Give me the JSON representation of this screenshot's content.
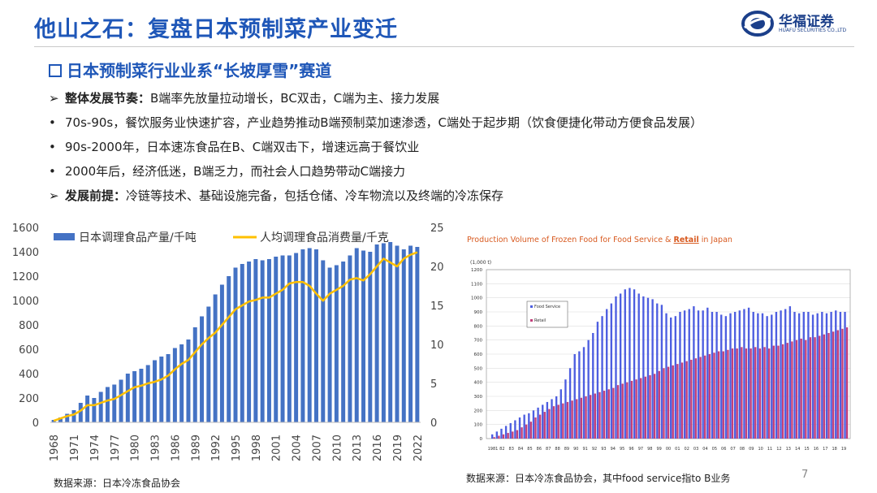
{
  "header": {
    "title": "他山之石：复盘日本预制菜产业变迁",
    "logo_text": "华福证券",
    "logo_sub": "HUAFU SECURITIES CO.,LTD"
  },
  "section": {
    "subtitle": "日本预制菜行业业系“长坡厚雪”赛道",
    "bullets": [
      {
        "marker": "➢",
        "bold": "整体发展节奏：",
        "text": "B端率先放量拉动增长，BC双击，C端为主、接力发展"
      },
      {
        "marker": "•",
        "bold": "",
        "text": "70s-90s，餐饮服务业快速扩容，产业趋势推动B端预制菜加速渗透，C端处于起步期（饮食便捷化带动方便食品发展）"
      },
      {
        "marker": "•",
        "bold": "",
        "text": "90s-2000年，日本速冻食品在B、C端双击下，增速远高于餐饮业"
      },
      {
        "marker": "•",
        "bold": "",
        "text": "2000年后，经济低迷，B端乏力，而社会人口趋势带动C端接力"
      },
      {
        "marker": "➢",
        "bold": "发展前提：",
        "text": "冷链等技术、基础设施完备，包括仓储、冷车物流以及终端的冷冻保存"
      }
    ]
  },
  "chart_data": [
    {
      "type": "bar+line",
      "categories": [
        "1968",
        "1969",
        "1970",
        "1971",
        "1972",
        "1973",
        "1974",
        "1975",
        "1976",
        "1977",
        "1978",
        "1979",
        "1980",
        "1981",
        "1982",
        "1983",
        "1984",
        "1985",
        "1986",
        "1987",
        "1988",
        "1989",
        "1990",
        "1991",
        "1992",
        "1993",
        "1994",
        "1995",
        "1996",
        "1997",
        "1998",
        "1999",
        "2000",
        "2001",
        "2002",
        "2003",
        "2004",
        "2005",
        "2006",
        "2007",
        "2008",
        "2009",
        "2010",
        "2011",
        "2012",
        "2013",
        "2014",
        "2015",
        "2016",
        "2017",
        "2018",
        "2019",
        "2020",
        "2021",
        "2022"
      ],
      "tick_labels": [
        "1968",
        "1971",
        "1974",
        "1977",
        "1980",
        "1983",
        "1986",
        "1989",
        "1992",
        "1995",
        "1998",
        "2001",
        "2004",
        "2007",
        "2010",
        "2013",
        "2016",
        "2019",
        "2022"
      ],
      "series": [
        {
          "name": "日本调理食品产量/千吨",
          "type": "bar",
          "axis": "left",
          "color": "#4472c4",
          "values": [
            20,
            40,
            70,
            100,
            160,
            220,
            200,
            250,
            290,
            310,
            350,
            400,
            420,
            440,
            470,
            510,
            540,
            560,
            610,
            640,
            680,
            780,
            870,
            950,
            1050,
            1130,
            1200,
            1270,
            1300,
            1320,
            1340,
            1330,
            1340,
            1360,
            1370,
            1370,
            1390,
            1420,
            1430,
            1420,
            1330,
            1270,
            1290,
            1320,
            1370,
            1430,
            1410,
            1400,
            1460,
            1470,
            1480,
            1450,
            1420,
            1450,
            1440
          ]
        },
        {
          "name": "人均调理食品消费量/千克",
          "type": "line",
          "axis": "right",
          "color": "#ffc000",
          "values": [
            0.2,
            0.5,
            0.8,
            1.0,
            1.5,
            2.2,
            2.2,
            2.5,
            2.8,
            3.0,
            3.5,
            4.0,
            4.5,
            4.7,
            5.0,
            5.2,
            5.5,
            6.0,
            6.8,
            7.5,
            8.0,
            9.0,
            10.0,
            10.8,
            11.5,
            12.5,
            13.5,
            14.5,
            15.0,
            15.5,
            15.7,
            16.0,
            16.0,
            16.5,
            17.0,
            17.8,
            18.0,
            18.0,
            17.5,
            16.5,
            15.6,
            16.5,
            17.0,
            17.5,
            18.3,
            18.5,
            18.2,
            19.0,
            20.0,
            21.0,
            20.5,
            20.0,
            21.0,
            21.5,
            21.8
          ]
        }
      ],
      "ylim_left": [
        0,
        1600
      ],
      "yticks_left": [
        0,
        200,
        400,
        600,
        800,
        1000,
        1200,
        1400,
        1600
      ],
      "ylim_right": [
        0,
        25
      ],
      "yticks_right": [
        0,
        5,
        10,
        15,
        20,
        25
      ]
    },
    {
      "type": "bar",
      "title_part1": "Production Volume of Frozen Food for Food Service & ",
      "title_highlight": "Retail",
      "title_part2": " in Japan",
      "unit_label": "(1,000 t)",
      "tick_labels": [
        "1981",
        "82",
        "83",
        "84",
        "85",
        "86",
        "87",
        "88",
        "89",
        "90",
        "91",
        "92",
        "93",
        "94",
        "95",
        "96",
        "97",
        "98",
        "99",
        "00",
        "01",
        "02",
        "03",
        "04",
        "05",
        "06",
        "07",
        "08",
        "09",
        "10",
        "11",
        "12",
        "13",
        "14",
        "15",
        "16",
        "17",
        "18",
        "19"
      ],
      "series": [
        {
          "name": "Food Service",
          "color": "#4d5ee0",
          "values": [
            30,
            50,
            70,
            90,
            110,
            130,
            150,
            170,
            180,
            200,
            220,
            240,
            260,
            280,
            300,
            350,
            420,
            500,
            600,
            620,
            650,
            700,
            750,
            830,
            870,
            920,
            960,
            1010,
            1030,
            1060,
            1070,
            1060,
            1030,
            1010,
            1000,
            990,
            960,
            950,
            890,
            860,
            870,
            900,
            910,
            920,
            940,
            910,
            910,
            930,
            900,
            900,
            880,
            870,
            890,
            900,
            910,
            920,
            930,
            900,
            890,
            890,
            870,
            880,
            900,
            910,
            920,
            940,
            900,
            890,
            900,
            900,
            880,
            890,
            900,
            890,
            900,
            910,
            900,
            900
          ]
        },
        {
          "name": "Retail",
          "color": "#c2407a",
          "values": [
            10,
            20,
            30,
            40,
            50,
            60,
            80,
            100,
            120,
            150,
            170,
            190,
            210,
            230,
            240,
            250,
            260,
            270,
            280,
            290,
            300,
            310,
            320,
            330,
            340,
            350,
            360,
            380,
            390,
            400,
            410,
            420,
            430,
            440,
            450,
            460,
            480,
            500,
            510,
            520,
            530,
            540,
            550,
            560,
            570,
            580,
            590,
            600,
            610,
            620,
            620,
            630,
            640,
            640,
            650,
            640,
            640,
            650,
            640,
            650,
            640,
            660,
            660,
            670,
            680,
            690,
            700,
            710,
            700,
            720,
            720,
            730,
            740,
            750,
            760,
            770,
            780,
            790
          ]
        }
      ],
      "ylim": [
        0,
        1200
      ],
      "yticks": [
        0,
        100,
        200,
        300,
        400,
        500,
        600,
        700,
        800,
        900,
        1000,
        1100,
        1200
      ]
    }
  ],
  "sources": {
    "left": "数据来源：日本冷冻食品协会",
    "right": "数据来源：日本冷冻食品协会，其中food service指to B业务"
  },
  "page_number": "7"
}
